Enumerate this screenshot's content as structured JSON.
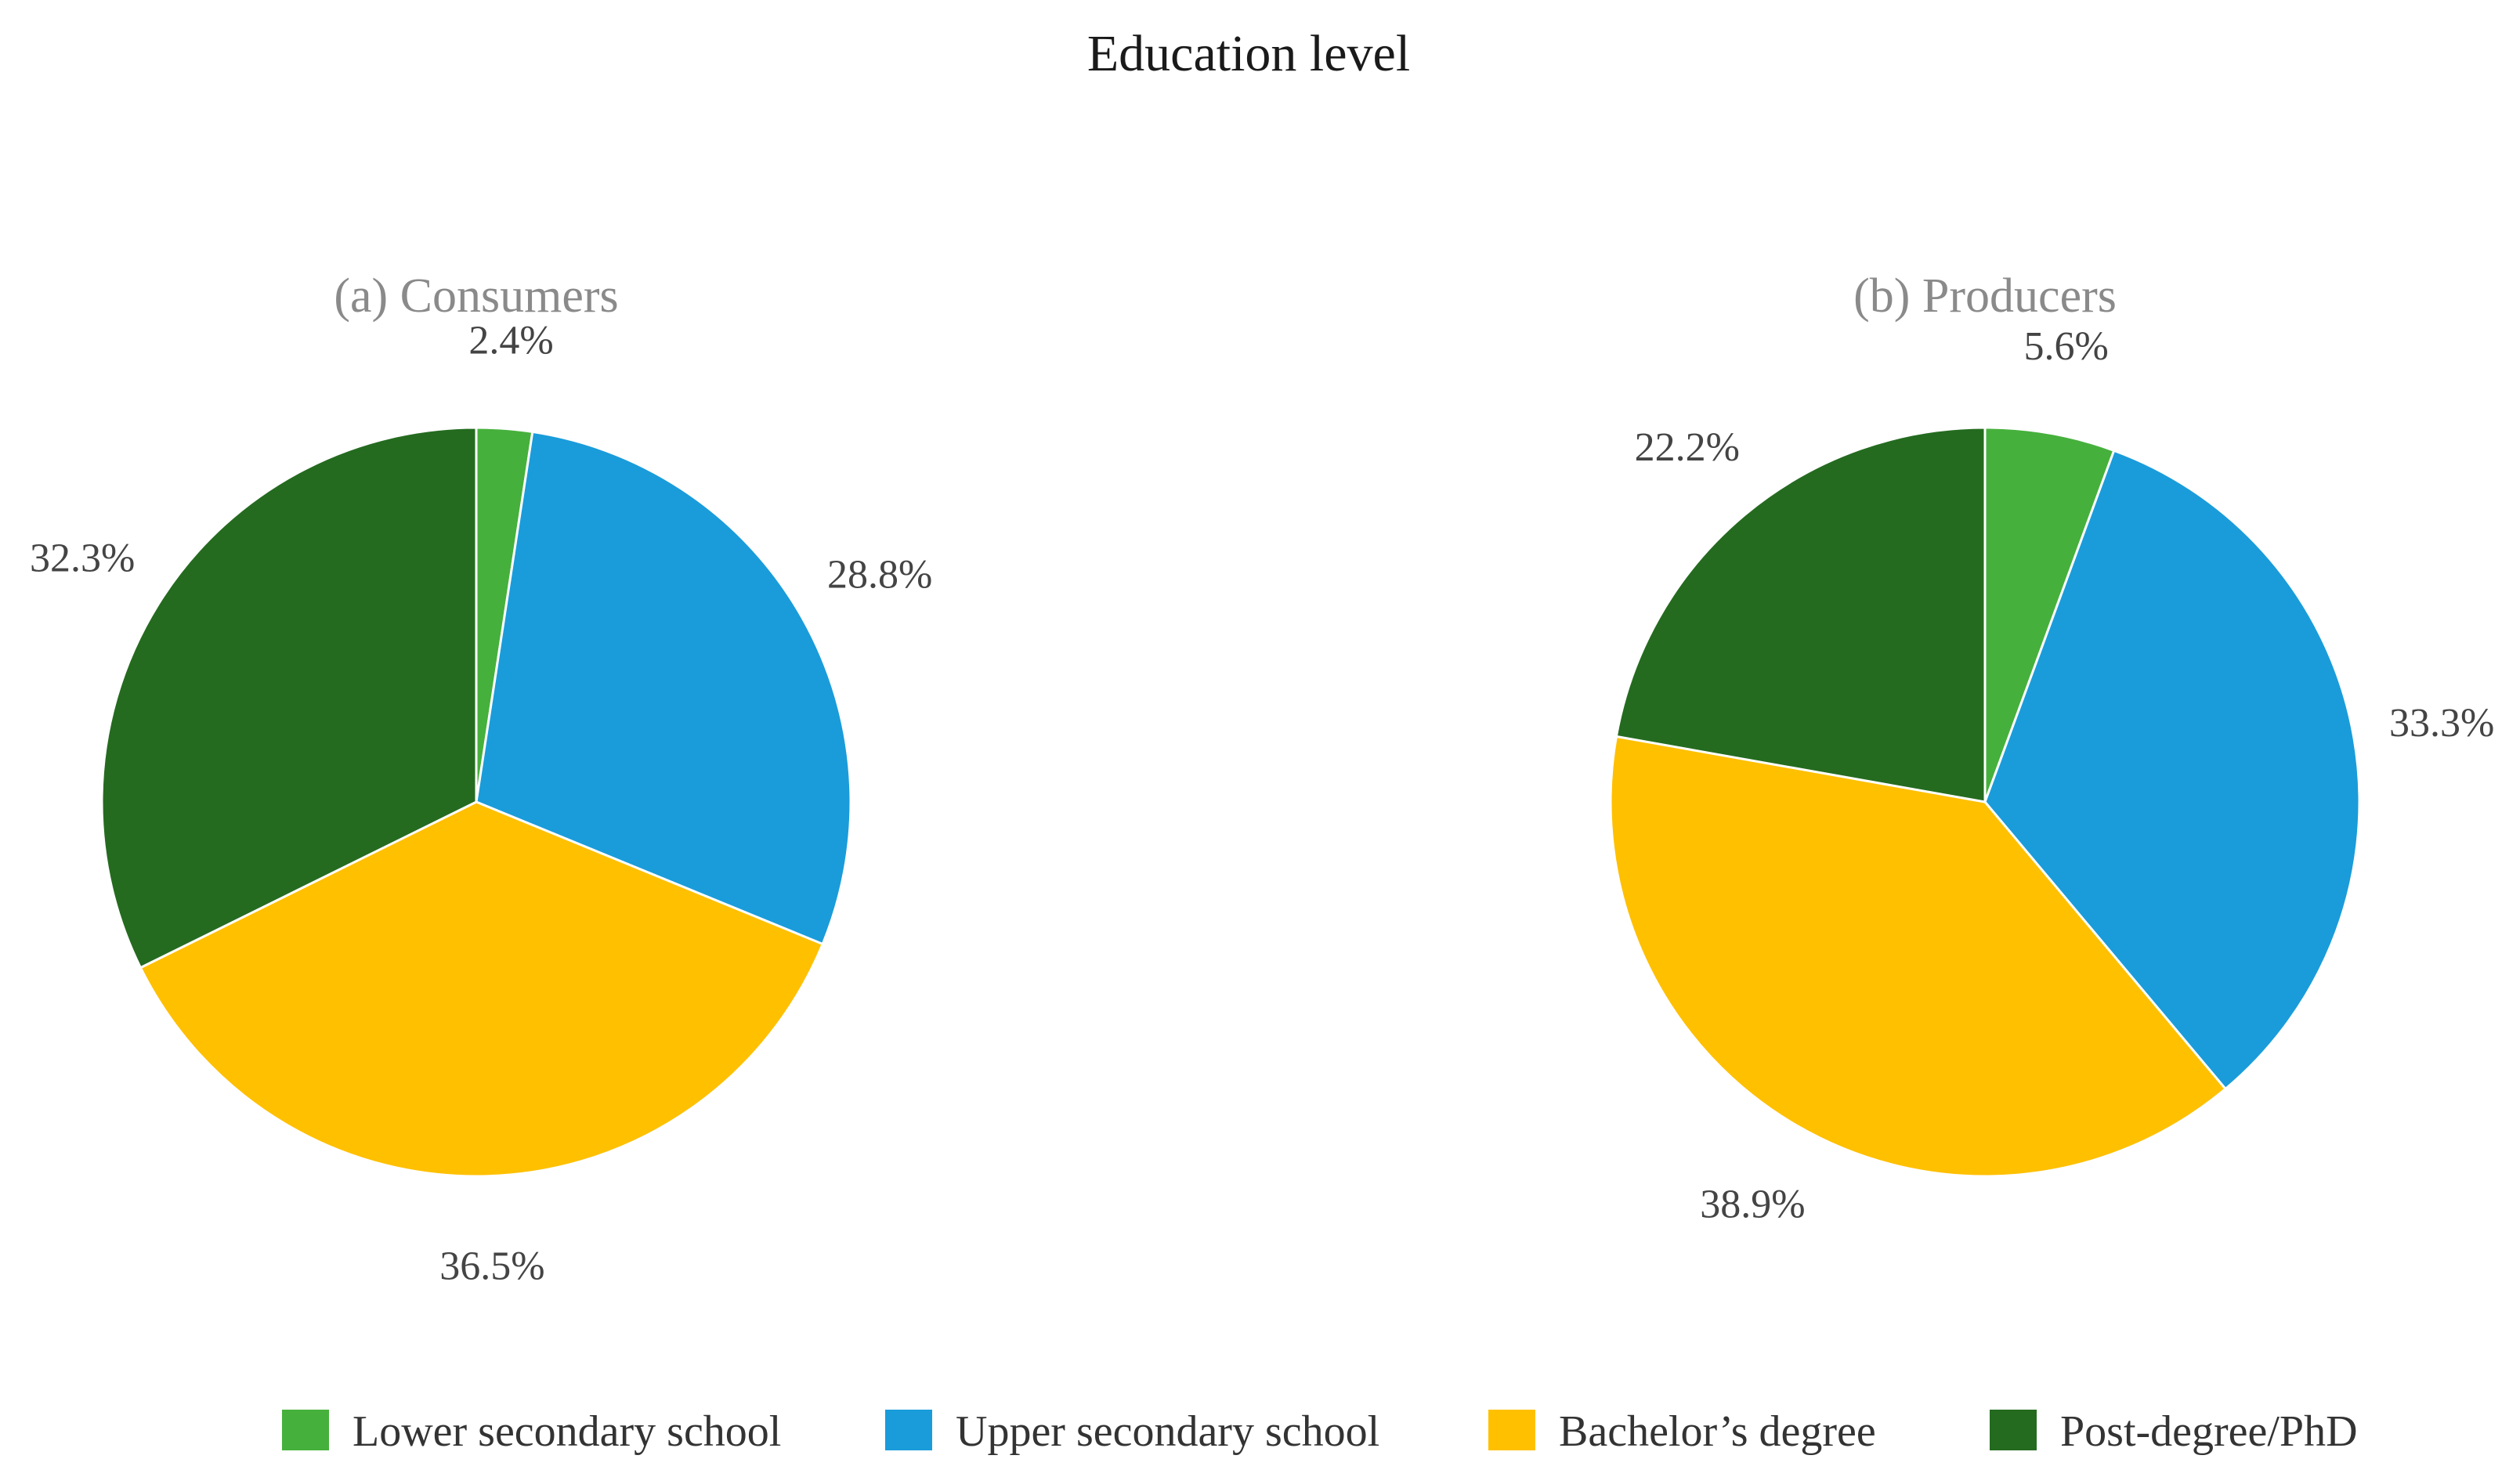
{
  "chart_data": [
    {
      "type": "pie",
      "title": "Education level",
      "subtitle": "(a) Consumers",
      "categories": [
        "Lower secondary school",
        "Upper secondary school",
        "Bachelor’s degree",
        "Post-degree/PhD"
      ],
      "values": [
        2.4,
        28.8,
        36.5,
        32.3
      ],
      "labels": [
        "2.4%",
        "28.8%",
        "36.5%",
        "32.3%"
      ],
      "colors": [
        "#46B03C",
        "#1A9CDA",
        "#FFC000",
        "#246B1F"
      ],
      "legend_position": "bottom"
    },
    {
      "type": "pie",
      "title": "Education level",
      "subtitle": "(b) Producers",
      "categories": [
        "Lower secondary school",
        "Upper secondary school",
        "Bachelor’s degree",
        "Post-degree/PhD"
      ],
      "values": [
        5.6,
        33.3,
        38.9,
        22.2
      ],
      "labels": [
        "5.6%",
        "33.3%",
        "38.9%",
        "22.2%"
      ],
      "colors": [
        "#46B03C",
        "#1A9CDA",
        "#FFC000",
        "#246B1F"
      ],
      "legend_position": "bottom"
    }
  ],
  "legend": {
    "items": [
      {
        "label": "Lower secondary school",
        "color": "#46B03C"
      },
      {
        "label": "Upper secondary school",
        "color": "#1A9CDA"
      },
      {
        "label": "Bachelor’s degree",
        "color": "#FFC000"
      },
      {
        "label": "Post-degree/PhD",
        "color": "#246B1F"
      }
    ]
  }
}
